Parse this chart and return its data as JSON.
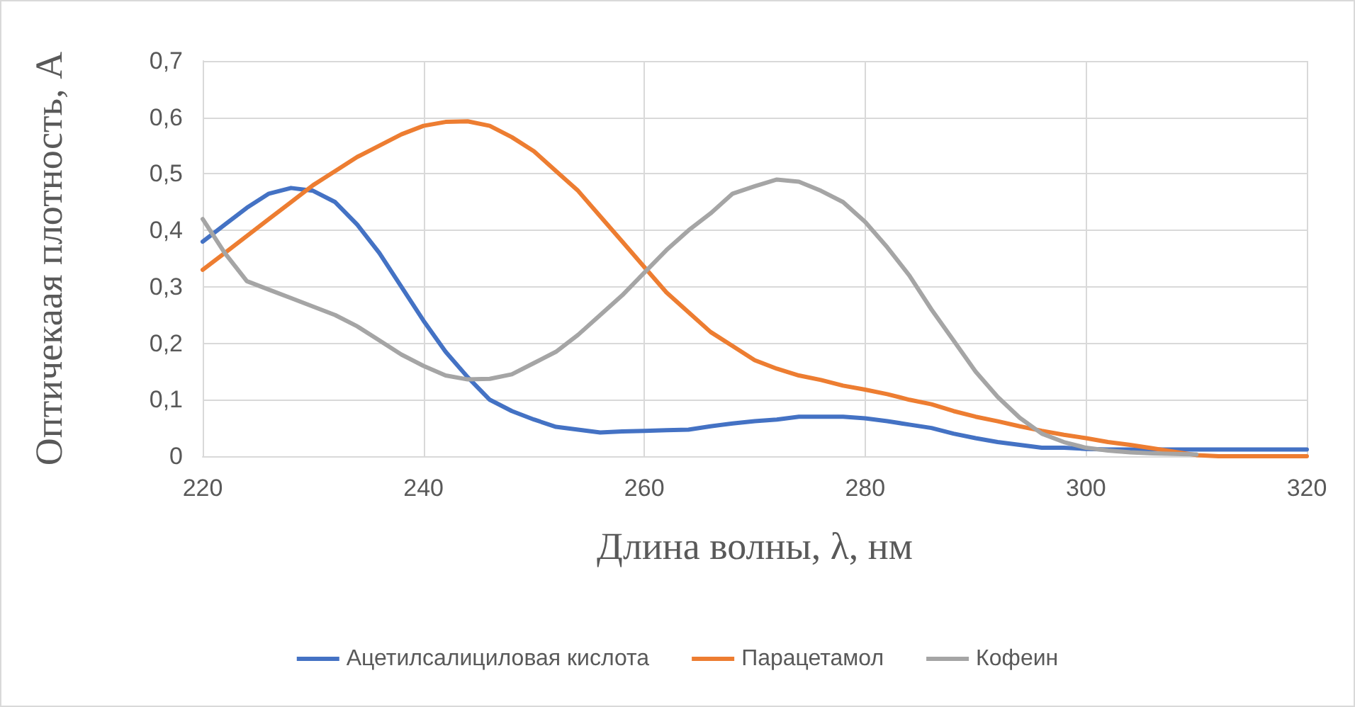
{
  "chart_data": {
    "type": "line",
    "xlabel": "Длина волны, λ, нм",
    "ylabel": "Оптичекаая плотность, А",
    "x": [
      220,
      222,
      224,
      226,
      228,
      230,
      232,
      234,
      236,
      238,
      240,
      242,
      244,
      246,
      248,
      250,
      252,
      254,
      256,
      258,
      260,
      262,
      264,
      266,
      268,
      270,
      272,
      274,
      276,
      278,
      280,
      282,
      284,
      286,
      288,
      290,
      292,
      294,
      296,
      298,
      300,
      302,
      304,
      306,
      308,
      310,
      312,
      314,
      316,
      318,
      320
    ],
    "series": [
      {
        "name": "Ацетилсалициловая кислота",
        "color": "#4472c4",
        "values": [
          0.38,
          0.41,
          0.44,
          0.465,
          0.475,
          0.47,
          0.45,
          0.41,
          0.36,
          0.3,
          0.24,
          0.185,
          0.14,
          0.1,
          0.08,
          0.065,
          0.052,
          0.047,
          0.042,
          0.044,
          0.045,
          0.046,
          0.047,
          0.053,
          0.058,
          0.062,
          0.065,
          0.07,
          0.07,
          0.07,
          0.067,
          0.062,
          0.056,
          0.05,
          0.04,
          0.032,
          0.025,
          0.02,
          0.015,
          0.015,
          0.013,
          0.012,
          0.012,
          0.012,
          0.012,
          0.012,
          0.012,
          0.012,
          0.012,
          0.012,
          0.012
        ]
      },
      {
        "name": "Парацетамол",
        "color": "#ed7d31",
        "values": [
          0.33,
          0.36,
          0.39,
          0.42,
          0.45,
          0.48,
          0.505,
          0.53,
          0.55,
          0.57,
          0.585,
          0.592,
          0.593,
          0.585,
          0.565,
          0.54,
          0.505,
          0.47,
          0.425,
          0.38,
          0.335,
          0.29,
          0.255,
          0.22,
          0.195,
          0.17,
          0.155,
          0.143,
          0.135,
          0.125,
          0.118,
          0.11,
          0.1,
          0.092,
          0.08,
          0.07,
          0.062,
          0.053,
          0.045,
          0.038,
          0.032,
          0.025,
          0.02,
          0.014,
          0.008,
          0.002,
          0,
          0,
          0,
          0,
          0
        ]
      },
      {
        "name": "Кофеин",
        "color": "#a5a5a5",
        "values": [
          0.42,
          0.36,
          0.31,
          0.295,
          0.28,
          0.265,
          0.25,
          0.23,
          0.205,
          0.18,
          0.16,
          0.143,
          0.136,
          0.137,
          0.145,
          0.165,
          0.185,
          0.215,
          0.25,
          0.285,
          0.325,
          0.365,
          0.4,
          0.43,
          0.465,
          0.478,
          0.49,
          0.486,
          0.47,
          0.45,
          0.415,
          0.37,
          0.32,
          0.26,
          0.205,
          0.15,
          0.105,
          0.068,
          0.04,
          0.025,
          0.015,
          0.01,
          0.007,
          0.005,
          0.004,
          0.003,
          null,
          null,
          null,
          null,
          null
        ]
      }
    ],
    "xlim": [
      220,
      320
    ],
    "xticks": [
      220,
      240,
      260,
      280,
      300,
      320
    ],
    "ylim": [
      0,
      0.7
    ],
    "yticks": [
      0,
      {
        "value": 0.1,
        "label": "0,1"
      },
      {
        "value": 0.2,
        "label": "0,2"
      },
      {
        "value": 0.3,
        "label": "0,3"
      },
      {
        "value": 0.4,
        "label": "0,4"
      },
      {
        "value": 0.5,
        "label": "0,5"
      },
      {
        "value": 0.6,
        "label": "0,6"
      },
      {
        "value": 0.7,
        "label": "0,7"
      }
    ],
    "grid": true,
    "legend": "bottom",
    "marker": "none",
    "line_style": "solid"
  }
}
